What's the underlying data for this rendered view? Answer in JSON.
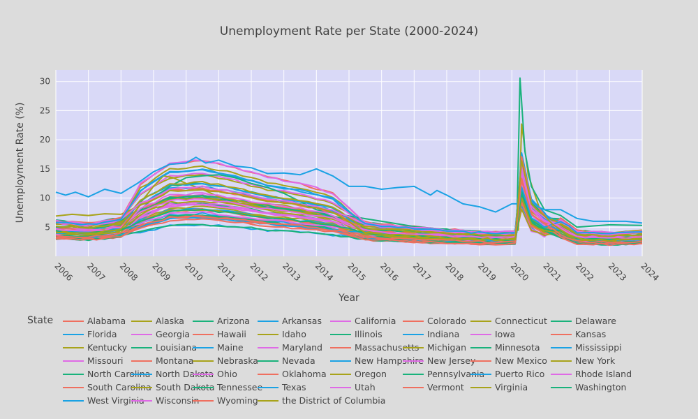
{
  "chart_data": {
    "type": "line",
    "title": "Unemployment Rate per State (2000-2024)",
    "xlabel": "Year",
    "ylabel": "Unemployment Rate (%)",
    "legend_title": "State",
    "legend_placement": "bottom",
    "xlim": [
      2006,
      2024
    ],
    "ylim": [
      0,
      32
    ],
    "x_ticks": [
      2006,
      2007,
      2008,
      2009,
      2010,
      2011,
      2012,
      2013,
      2014,
      2015,
      2016,
      2017,
      2018,
      2019,
      2020,
      2021,
      2022,
      2023,
      2024
    ],
    "y_ticks": [
      5,
      10,
      15,
      20,
      25,
      30
    ],
    "grid": true,
    "plot_background": "#d9d9f7",
    "page_background": "#dcdcdc",
    "palette": [
      "#ef6f5f",
      "#a8a31a",
      "#19b27b",
      "#1aa2e4",
      "#df6ae6"
    ],
    "series": [
      {
        "name": "Alabama"
      },
      {
        "name": "Alaska"
      },
      {
        "name": "Arizona"
      },
      {
        "name": "Arkansas"
      },
      {
        "name": "California"
      },
      {
        "name": "Colorado"
      },
      {
        "name": "Connecticut"
      },
      {
        "name": "Delaware"
      },
      {
        "name": "Florida"
      },
      {
        "name": "Georgia"
      },
      {
        "name": "Hawaii"
      },
      {
        "name": "Idaho"
      },
      {
        "name": "Illinois"
      },
      {
        "name": "Indiana"
      },
      {
        "name": "Iowa"
      },
      {
        "name": "Kansas"
      },
      {
        "name": "Kentucky"
      },
      {
        "name": "Louisiana"
      },
      {
        "name": "Maine"
      },
      {
        "name": "Maryland"
      },
      {
        "name": "Massachusetts"
      },
      {
        "name": "Michigan"
      },
      {
        "name": "Minnesota"
      },
      {
        "name": "Mississippi"
      },
      {
        "name": "Missouri"
      },
      {
        "name": "Montana"
      },
      {
        "name": "Nebraska"
      },
      {
        "name": "Nevada"
      },
      {
        "name": "New Hampshire"
      },
      {
        "name": "New Jersey"
      },
      {
        "name": "New Mexico"
      },
      {
        "name": "New York"
      },
      {
        "name": "North Carolina"
      },
      {
        "name": "North Dakota"
      },
      {
        "name": "Ohio"
      },
      {
        "name": "Oklahoma"
      },
      {
        "name": "Oregon"
      },
      {
        "name": "Pennsylvania"
      },
      {
        "name": "Puerto Rico"
      },
      {
        "name": "Rhode Island"
      },
      {
        "name": "South Carolina"
      },
      {
        "name": "South Dakota"
      },
      {
        "name": "Tennessee"
      },
      {
        "name": "Texas"
      },
      {
        "name": "Utah"
      },
      {
        "name": "Vermont"
      },
      {
        "name": "Virginia"
      },
      {
        "name": "Washington"
      },
      {
        "name": "West Virginia"
      },
      {
        "name": "Wisconsin"
      },
      {
        "name": "Wyoming"
      },
      {
        "name": "the District of Columbia"
      }
    ],
    "highlight_series": {
      "Puerto Rico": {
        "x": [
          2006.0,
          2006.3,
          2006.6,
          2007.0,
          2007.5,
          2008.0,
          2008.5,
          2009.0,
          2009.5,
          2010.0,
          2010.3,
          2010.6,
          2011.0,
          2011.5,
          2012.0,
          2012.5,
          2013.0,
          2013.5,
          2014.0,
          2014.5,
          2015.0,
          2015.5,
          2016.0,
          2016.5,
          2017.0,
          2017.5,
          2017.7,
          2018.0,
          2018.5,
          2019.0,
          2019.5,
          2020.0,
          2020.2,
          2020.3,
          2020.5,
          2020.8,
          2021.0,
          2021.5,
          2022.0,
          2022.5,
          2023.0,
          2023.5,
          2024.0
        ],
        "y": [
          11.0,
          10.5,
          11.0,
          10.2,
          11.5,
          10.8,
          12.5,
          14.5,
          15.8,
          16.0,
          17.0,
          16.0,
          16.5,
          15.5,
          15.2,
          14.2,
          14.3,
          14.0,
          15.0,
          13.8,
          12.0,
          12.0,
          11.5,
          11.8,
          12.0,
          10.5,
          11.3,
          10.5,
          9.0,
          8.5,
          7.6,
          9.0,
          9.0,
          16.0,
          10.0,
          8.5,
          8.0,
          8.0,
          6.5,
          6.0,
          6.0,
          6.0,
          5.7
        ]
      },
      "Nevada": {
        "x": [
          2006.0,
          2007.0,
          2008.0,
          2008.5,
          2009.0,
          2009.5,
          2010.0,
          2010.5,
          2011.0,
          2011.5,
          2012.0,
          2012.5,
          2013.0,
          2014.0,
          2015.0,
          2016.0,
          2017.0,
          2018.0,
          2019.0,
          2020.0,
          2020.15,
          2020.25,
          2020.4,
          2020.6,
          2020.8,
          2021.0,
          2021.5,
          2022.0,
          2023.0,
          2024.0
        ],
        "y": [
          4.2,
          4.6,
          6.2,
          7.5,
          10.0,
          12.0,
          13.5,
          13.8,
          14.0,
          13.5,
          12.5,
          11.8,
          10.8,
          8.0,
          6.9,
          6.0,
          5.1,
          4.6,
          4.0,
          4.0,
          4.5,
          30.6,
          18.0,
          12.0,
          10.0,
          8.0,
          7.0,
          5.0,
          5.4,
          5.3
        ]
      },
      "Michigan": {
        "x": [
          2006.0,
          2006.5,
          2007.0,
          2007.5,
          2008.0,
          2008.5,
          2009.0,
          2009.3,
          2009.6,
          2010.0,
          2010.5,
          2011.0,
          2012.0,
          2013.0,
          2014.0,
          2015.0,
          2016.0,
          2017.0,
          2018.0,
          2019.0,
          2020.0,
          2020.2,
          2020.3,
          2020.5,
          2020.8,
          2021.0,
          2021.5,
          2022.0,
          2023.0,
          2024.0
        ],
        "y": [
          6.9,
          7.2,
          7.0,
          7.3,
          7.2,
          8.5,
          12.0,
          13.8,
          13.5,
          12.5,
          11.5,
          10.2,
          9.1,
          8.8,
          7.3,
          5.4,
          5.0,
          4.6,
          4.2,
          4.1,
          4.2,
          4.5,
          22.7,
          14.0,
          9.0,
          6.0,
          5.8,
          4.3,
          4.0,
          4.5
        ]
      }
    }
  }
}
